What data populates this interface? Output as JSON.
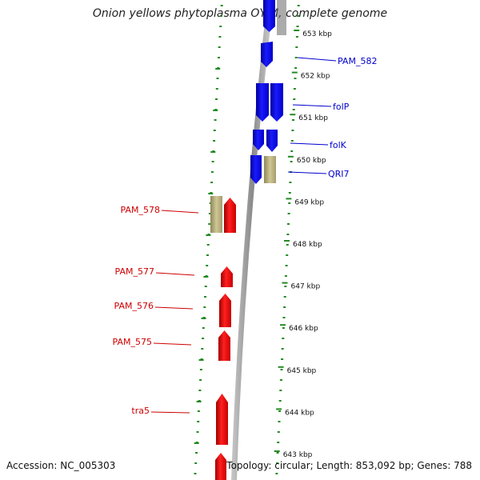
{
  "title": "Onion yellows phytoplasma OY-M, complete genome",
  "footer": {
    "accession": "Accession: NC_005303",
    "summary": "Topology: circular; Length: 853,092 bp; Genes: 788"
  },
  "scale": {
    "ticks": [
      {
        "label": "653 kbp"
      },
      {
        "label": "652 kbp"
      },
      {
        "label": "651 kbp"
      },
      {
        "label": "650 kbp"
      },
      {
        "label": "649 kbp"
      },
      {
        "label": "648 kbp"
      },
      {
        "label": "647 kbp"
      },
      {
        "label": "646 kbp"
      },
      {
        "label": "645 kbp"
      },
      {
        "label": "644 kbp"
      },
      {
        "label": "643 kbp"
      }
    ]
  },
  "genes_forward": [
    {
      "label": "PAM_582"
    },
    {
      "label": "folP"
    },
    {
      "label": "folK"
    },
    {
      "label": "QRI7"
    }
  ],
  "genes_reverse": [
    {
      "label": "PAM_578"
    },
    {
      "label": "PAM_577"
    },
    {
      "label": "PAM_576"
    },
    {
      "label": "PAM_575"
    },
    {
      "label": "tra5"
    }
  ],
  "colors": {
    "forward_gene": "#0000ee",
    "reverse_gene": "#ee0000",
    "other_feature": "#b8b07a",
    "backbone": "#888888",
    "dotted_ring": "#228b22",
    "tick_label": "#111111"
  }
}
